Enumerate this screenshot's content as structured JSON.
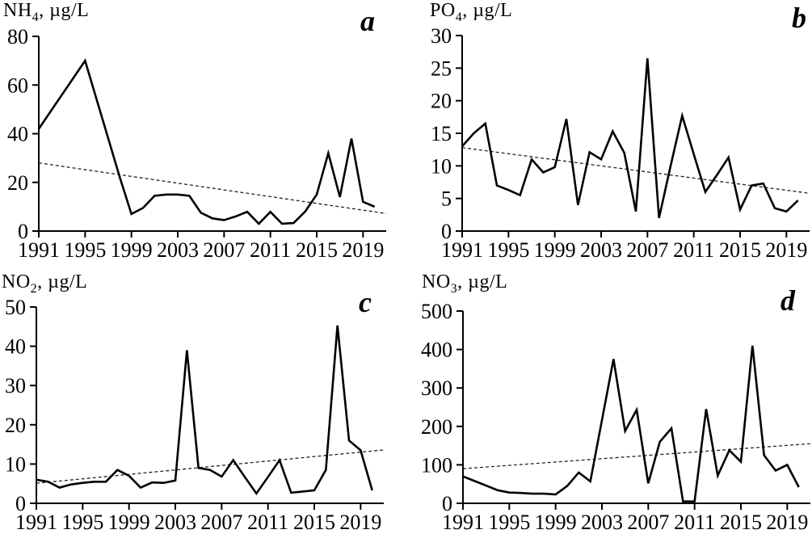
{
  "figure": {
    "background_color": "#ffffff",
    "line_color": "#000000",
    "trend_color": "#222222",
    "text_color": "#000000"
  },
  "chart_data": [
    {
      "type": "line",
      "panel_letter": "a",
      "title": {
        "base": "NH",
        "sub": "4",
        "unit": ", µg/L"
      },
      "xlabel": "",
      "ylabel": "NH4, µg/L",
      "x": [
        1991,
        1992,
        1993,
        1994,
        1995,
        1996,
        1997,
        1998,
        1999,
        2000,
        2001,
        2002,
        2003,
        2004,
        2005,
        2006,
        2007,
        2008,
        2009,
        2010,
        2011,
        2012,
        2013,
        2014,
        2015,
        2016,
        2017,
        2018,
        2019,
        2020
      ],
      "values": [
        42,
        49,
        56,
        63,
        70,
        54,
        38,
        22,
        7,
        9.5,
        14.5,
        15,
        15,
        14.5,
        7.5,
        5.2,
        4.5,
        6,
        7.9,
        3,
        7.9,
        3,
        3.3,
        8,
        15,
        32,
        14,
        38,
        12,
        10
      ],
      "trend": {
        "x_start": 1991,
        "y_start": 28,
        "x_end": 2021,
        "y_end": 7.2,
        "style": "dashed"
      },
      "xlim": [
        1991,
        2021
      ],
      "ylim": [
        0,
        80
      ],
      "x_ticks": [
        1991,
        1995,
        1999,
        2003,
        2007,
        2011,
        2015,
        2019
      ],
      "y_ticks": [
        0,
        20,
        40,
        60,
        80
      ],
      "grid": false,
      "legend": "none"
    },
    {
      "type": "line",
      "panel_letter": "b",
      "title": {
        "base": "PO",
        "sub": "4",
        "unit": ", µg/L"
      },
      "xlabel": "",
      "ylabel": "PO4, µg/L",
      "x": [
        1991,
        1992,
        1993,
        1994,
        1995,
        1996,
        1997,
        1998,
        1999,
        2000,
        2001,
        2002,
        2003,
        2004,
        2005,
        2006,
        2007,
        2008,
        2009,
        2010,
        2011,
        2012,
        2013,
        2014,
        2015,
        2016,
        2017,
        2018,
        2019,
        2020
      ],
      "values": [
        13,
        15,
        16.5,
        7,
        6.3,
        5.5,
        11,
        9,
        9.8,
        17.2,
        4,
        12.1,
        11,
        15.3,
        12,
        3,
        26.5,
        2,
        10,
        17.7,
        11.8,
        6,
        8.6,
        11.3,
        3.3,
        7,
        7.3,
        3.5,
        3,
        4.7
      ],
      "trend": {
        "x_start": 1991,
        "y_start": 12.8,
        "x_end": 2021,
        "y_end": 5.8,
        "style": "dashed"
      },
      "xlim": [
        1991,
        2021
      ],
      "ylim": [
        0,
        30
      ],
      "x_ticks": [
        1991,
        1995,
        1999,
        2003,
        2007,
        2011,
        2015,
        2019
      ],
      "y_ticks": [
        0,
        5,
        10,
        15,
        20,
        25,
        30
      ],
      "grid": false,
      "legend": "none"
    },
    {
      "type": "line",
      "panel_letter": "c",
      "title": {
        "base": "NO",
        "sub": "2",
        "unit": ", µg/L"
      },
      "xlabel": "",
      "ylabel": "NO2, µg/L",
      "x": [
        1991,
        1992,
        1993,
        1994,
        1995,
        1996,
        1997,
        1998,
        1999,
        2000,
        2001,
        2002,
        2003,
        2004,
        2005,
        2006,
        2007,
        2008,
        2009,
        2010,
        2011,
        2012,
        2013,
        2014,
        2015,
        2016,
        2017,
        2018,
        2019,
        2020
      ],
      "values": [
        6,
        5.5,
        4,
        4.8,
        5.2,
        5.5,
        5.5,
        8.5,
        7,
        4,
        5.3,
        5.2,
        5.8,
        39,
        9,
        8.5,
        6.8,
        11,
        6.7,
        2.5,
        6.7,
        11,
        2.7,
        3,
        3.3,
        8.5,
        45.3,
        16,
        13.5,
        3.3
      ],
      "trend": {
        "x_start": 1991,
        "y_start": 5.1,
        "x_end": 2021,
        "y_end": 13.6,
        "style": "dashed"
      },
      "xlim": [
        1991,
        2021
      ],
      "ylim": [
        0,
        50
      ],
      "x_ticks": [
        1991,
        1995,
        1999,
        2003,
        2007,
        2011,
        2015,
        2019
      ],
      "y_ticks": [
        0,
        10,
        20,
        30,
        40,
        50
      ],
      "grid": false,
      "legend": "none"
    },
    {
      "type": "line",
      "panel_letter": "d",
      "title": {
        "base": "NO",
        "sub": "3",
        "unit": ", µg/L"
      },
      "xlabel": "",
      "ylabel": "NO3, µg/L",
      "x": [
        1991,
        1992,
        1993,
        1994,
        1995,
        1996,
        1997,
        1998,
        1999,
        2000,
        2001,
        2002,
        2003,
        2004,
        2005,
        2006,
        2007,
        2008,
        2009,
        2010,
        2011,
        2012,
        2013,
        2014,
        2015,
        2016,
        2017,
        2018,
        2019,
        2020
      ],
      "values": [
        70,
        58,
        46,
        34,
        28,
        27,
        25,
        25,
        23,
        45,
        80,
        57,
        216,
        375,
        188,
        243,
        52,
        160,
        195,
        5,
        5,
        245,
        72,
        138,
        108,
        410,
        125,
        85,
        100,
        42
      ],
      "trend": {
        "x_start": 1991,
        "y_start": 90,
        "x_end": 2021,
        "y_end": 155,
        "style": "dashed"
      },
      "xlim": [
        1991,
        2021
      ],
      "ylim": [
        0,
        500
      ],
      "x_ticks": [
        1991,
        1995,
        1999,
        2003,
        2007,
        2011,
        2015,
        2019
      ],
      "y_ticks": [
        0,
        100,
        200,
        300,
        400,
        500
      ],
      "grid": false,
      "legend": "none"
    }
  ]
}
